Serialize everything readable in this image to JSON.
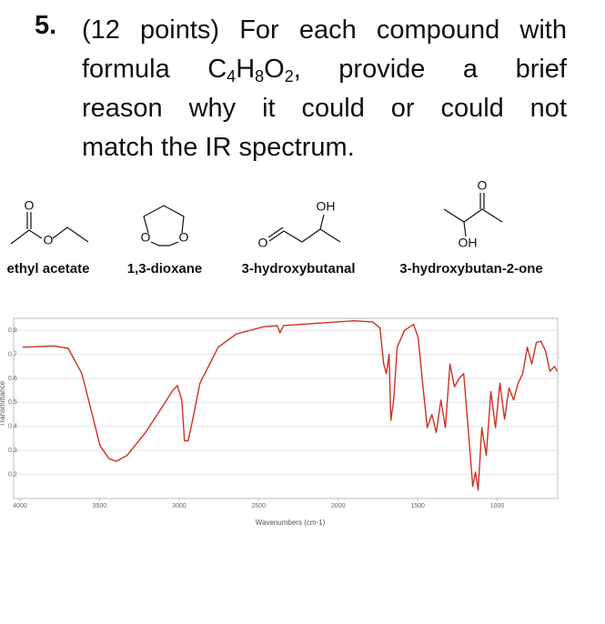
{
  "question": {
    "number": "5.",
    "line1": "(12 points) For each compound with",
    "formula_lead": "formula",
    "formula": [
      "C",
      "4",
      "H",
      "8",
      "O",
      "2"
    ],
    "formula_tail": ", provide a brief",
    "line3": "reason why it could or could not",
    "line4": "match the IR spectrum."
  },
  "compounds": [
    {
      "name": "ethyl acetate",
      "atoms": [
        "O",
        "O"
      ]
    },
    {
      "name": "1,3-dioxane",
      "atoms": [
        "O",
        "O"
      ]
    },
    {
      "name": "3-hydroxybutanal",
      "atoms": [
        "OH",
        "O"
      ]
    },
    {
      "name": "3-hydroxybutan-2-one",
      "atoms": [
        "O",
        "OH"
      ]
    }
  ],
  "chart_data": {
    "type": "line",
    "x_label": "Wavenumbers (cm-1)",
    "y_label": "Transmittance",
    "xlim": [
      4040,
      620
    ],
    "ylim": [
      0.1,
      0.85
    ],
    "xticks": [
      4000,
      3500,
      3000,
      2500,
      2000,
      1500,
      1000
    ],
    "yticks": [
      0.2,
      0.3,
      0.4,
      0.5,
      0.6,
      0.7,
      0.8
    ],
    "grid": true,
    "x": [
      3983,
      3783,
      3697,
      3611,
      3554,
      3497,
      3440,
      3394,
      3326,
      3211,
      3097,
      3040,
      3011,
      2983,
      2966,
      2943,
      2914,
      2869,
      2754,
      2640,
      2469,
      2383,
      2366,
      2343,
      2126,
      1897,
      1783,
      1737,
      1714,
      1697,
      1680,
      1669,
      1651,
      1629,
      1583,
      1526,
      1497,
      1469,
      1440,
      1411,
      1383,
      1354,
      1326,
      1297,
      1269,
      1240,
      1211,
      1183,
      1154,
      1137,
      1120,
      1097,
      1069,
      1040,
      1011,
      983,
      954,
      926,
      897,
      869,
      840,
      811,
      783,
      754,
      726,
      697,
      669,
      640,
      623
    ],
    "series": [
      {
        "color": "#cc3322",
        "values": [
          0.73,
          0.735,
          0.725,
          0.62,
          0.47,
          0.32,
          0.265,
          0.255,
          0.28,
          0.375,
          0.49,
          0.55,
          0.57,
          0.51,
          0.34,
          0.34,
          0.43,
          0.58,
          0.73,
          0.785,
          0.815,
          0.82,
          0.79,
          0.82,
          0.83,
          0.84,
          0.835,
          0.81,
          0.66,
          0.62,
          0.7,
          0.425,
          0.51,
          0.73,
          0.8,
          0.825,
          0.77,
          0.58,
          0.395,
          0.45,
          0.375,
          0.51,
          0.395,
          0.66,
          0.565,
          0.6,
          0.62,
          0.395,
          0.15,
          0.21,
          0.135,
          0.395,
          0.28,
          0.545,
          0.395,
          0.58,
          0.43,
          0.56,
          0.51,
          0.58,
          0.62,
          0.73,
          0.66,
          0.75,
          0.755,
          0.715,
          0.63,
          0.65,
          0.63
        ]
      }
    ]
  }
}
